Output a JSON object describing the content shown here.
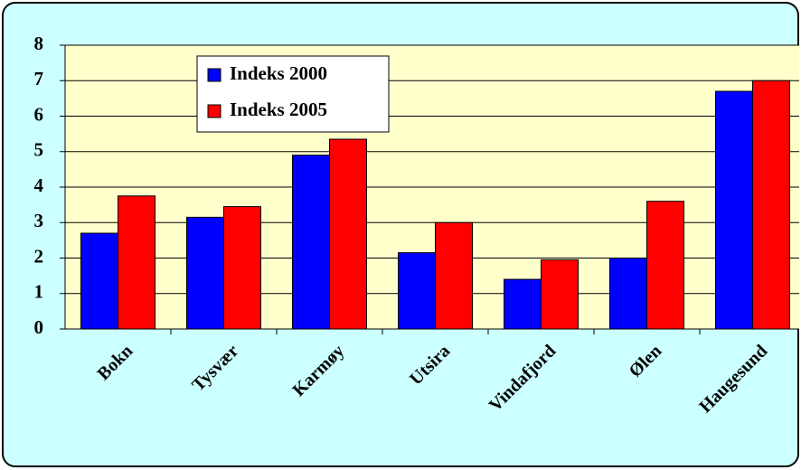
{
  "chart_data": {
    "type": "bar",
    "categories": [
      "Bokn",
      "Tysvær",
      "Karmøy",
      "Utsira",
      "Vindafjord",
      "Ølen",
      "Haugesund"
    ],
    "series": [
      {
        "name": "Indeks 2000",
        "color": "#0000ff",
        "values": [
          2.7,
          3.15,
          4.9,
          2.15,
          1.4,
          2.0,
          6.7
        ]
      },
      {
        "name": "Indeks 2005",
        "color": "#ff0000",
        "values": [
          3.75,
          3.45,
          5.35,
          3.0,
          1.95,
          3.6,
          7.0
        ]
      }
    ],
    "ylim": [
      0,
      8
    ],
    "yticks": [
      0,
      1,
      2,
      3,
      4,
      5,
      6,
      7,
      8
    ],
    "grid": true,
    "legend": "top-left"
  }
}
